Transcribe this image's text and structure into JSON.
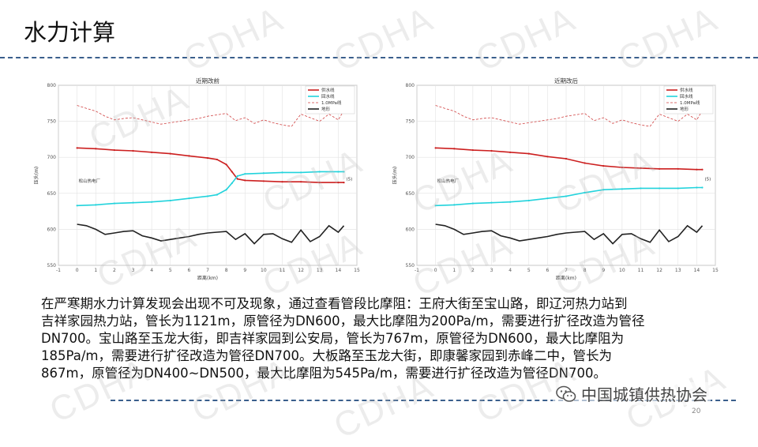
{
  "slide": {
    "title": "水力计算",
    "page_number": "20",
    "body": "在严寒期水力计算发现会出现不可及现象，通过查看管段比摩阻：王府大街至宝山路，即辽河热力站到\n吉祥家园热力站，管长为1121m，原管径为DN600，最大比摩阻为200Pa/m，需要进行扩径改造为管径\nDN700。宝山路至玉龙大街，即吉祥家园到公安局，管长为767m，原管径为DN600，最大比摩阻为\n185Pa/m，需要进行扩径改造为管径DN700。大板路至玉龙大街，即康馨家园到赤峰二中，管长为\n867m，原管径为DN400~DN500，最大比摩阻为545Pa/m，需要进行扩径改造为管径DN700。"
  },
  "watermark": {
    "text": "CDHA"
  },
  "logo": {
    "org_name": "中国城镇供热协会",
    "icon": "wechat-icon"
  },
  "colors": {
    "supply": "#cc1f1f",
    "return": "#22d3dc",
    "limit": "#d04040",
    "ground": "#222222",
    "accent_line": "#3a5f8c"
  },
  "chart_data": [
    {
      "type": "line",
      "title": "近期改前",
      "xlabel": "距离(km)",
      "ylabel": "压头(m)",
      "start_label": "松山热电厂",
      "end_label": "(5)",
      "x_ticks": [
        -1,
        0,
        1,
        2,
        3,
        4,
        5,
        6,
        7,
        8,
        9,
        10,
        11,
        12,
        13,
        14,
        15
      ],
      "y_ticks": [
        550,
        600,
        650,
        700,
        750,
        800
      ],
      "xlim": [
        -1,
        15
      ],
      "ylim": [
        550,
        800
      ],
      "grid": true,
      "legend_position": "top-right",
      "legend": [
        "供水线",
        "回水线",
        "1.0MPa线",
        "地形"
      ],
      "series": [
        {
          "name": "供水线",
          "style": "solid",
          "x": [
            0,
            1,
            2,
            3,
            4,
            5,
            6,
            7,
            7.5,
            8,
            8.3,
            8.6,
            9,
            10,
            11,
            12,
            13,
            14,
            14.3
          ],
          "y": [
            713,
            712,
            710,
            709,
            707,
            705,
            702,
            699,
            697,
            690,
            680,
            670,
            668,
            667,
            666,
            666,
            665,
            665,
            665
          ]
        },
        {
          "name": "回水线",
          "style": "solid",
          "x": [
            0,
            1,
            2,
            3,
            4,
            5,
            6,
            7,
            7.5,
            8,
            8.3,
            8.6,
            9,
            10,
            11,
            12,
            13,
            14,
            14.3
          ],
          "y": [
            633,
            634,
            636,
            637,
            638,
            640,
            643,
            646,
            648,
            655,
            664,
            674,
            677,
            678,
            679,
            679,
            680,
            680,
            680
          ]
        },
        {
          "name": "1.0MPa线",
          "style": "dashed",
          "x": [
            0,
            0.5,
            1,
            1.5,
            2,
            2.5,
            3,
            3.5,
            4,
            4.5,
            5,
            5.5,
            6,
            6.5,
            7,
            7.5,
            8,
            8.5,
            9,
            9.5,
            10,
            10.5,
            11,
            11.5,
            12,
            12.5,
            13,
            13.5,
            14,
            14.3
          ],
          "y": [
            772,
            768,
            764,
            757,
            752,
            754,
            755,
            752,
            749,
            746,
            748,
            750,
            752,
            754,
            757,
            759,
            761,
            751,
            755,
            747,
            752,
            748,
            745,
            743,
            760,
            755,
            750,
            760,
            752,
            765
          ]
        },
        {
          "name": "地形",
          "style": "solid",
          "x": [
            0,
            0.5,
            1,
            1.5,
            2,
            2.5,
            3,
            3.5,
            4,
            4.5,
            5,
            5.5,
            6,
            6.5,
            7,
            7.5,
            8,
            8.5,
            9,
            9.5,
            10,
            10.5,
            11,
            11.5,
            12,
            12.5,
            13,
            13.5,
            14,
            14.3
          ],
          "y": [
            607,
            605,
            600,
            593,
            595,
            597,
            598,
            591,
            588,
            584,
            586,
            588,
            590,
            593,
            595,
            596,
            597,
            586,
            594,
            580,
            593,
            594,
            587,
            582,
            599,
            583,
            590,
            605,
            596,
            605
          ]
        }
      ]
    },
    {
      "type": "line",
      "title": "近期改后",
      "xlabel": "距离(km)",
      "ylabel": "压头(m)",
      "start_label": "松山热电厂",
      "end_label": "(5)",
      "x_ticks": [
        -1,
        0,
        1,
        2,
        3,
        4,
        5,
        6,
        7,
        8,
        9,
        10,
        11,
        12,
        13,
        14,
        15
      ],
      "y_ticks": [
        550,
        600,
        650,
        700,
        750,
        800
      ],
      "xlim": [
        -1,
        15
      ],
      "ylim": [
        550,
        800
      ],
      "grid": true,
      "legend_position": "top-right",
      "legend": [
        "供水线",
        "回水线",
        "1.0MPa线",
        "地形"
      ],
      "series": [
        {
          "name": "供水线",
          "style": "solid",
          "x": [
            0,
            1,
            2,
            3,
            4,
            5,
            6,
            7,
            8,
            9,
            10,
            11,
            12,
            13,
            14,
            14.3
          ],
          "y": [
            713,
            712,
            710,
            709,
            707,
            705,
            701,
            698,
            692,
            688,
            686,
            685,
            684,
            684,
            683,
            683
          ]
        },
        {
          "name": "回水线",
          "style": "solid",
          "x": [
            0,
            1,
            2,
            3,
            4,
            5,
            6,
            7,
            8,
            9,
            10,
            11,
            12,
            13,
            14,
            14.3
          ],
          "y": [
            633,
            634,
            636,
            637,
            638,
            640,
            643,
            646,
            651,
            655,
            656,
            657,
            657,
            657,
            658,
            658
          ]
        },
        {
          "name": "1.0MPa线",
          "style": "dashed",
          "x": [
            0,
            0.5,
            1,
            1.5,
            2,
            2.5,
            3,
            3.5,
            4,
            4.5,
            5,
            5.5,
            6,
            6.5,
            7,
            7.5,
            8,
            8.5,
            9,
            9.5,
            10,
            10.5,
            11,
            11.5,
            12,
            12.5,
            13,
            13.5,
            14,
            14.3
          ],
          "y": [
            772,
            768,
            764,
            757,
            752,
            754,
            755,
            752,
            749,
            746,
            748,
            750,
            752,
            754,
            757,
            759,
            761,
            751,
            755,
            747,
            752,
            748,
            745,
            743,
            760,
            755,
            750,
            760,
            752,
            765
          ]
        },
        {
          "name": "地形",
          "style": "solid",
          "x": [
            0,
            0.5,
            1,
            1.5,
            2,
            2.5,
            3,
            3.5,
            4,
            4.5,
            5,
            5.5,
            6,
            6.5,
            7,
            7.5,
            8,
            8.5,
            9,
            9.5,
            10,
            10.5,
            11,
            11.5,
            12,
            12.5,
            13,
            13.5,
            14,
            14.3
          ],
          "y": [
            607,
            605,
            600,
            593,
            595,
            597,
            598,
            591,
            588,
            584,
            586,
            588,
            590,
            593,
            595,
            596,
            597,
            586,
            594,
            580,
            593,
            594,
            587,
            582,
            599,
            583,
            590,
            605,
            596,
            605
          ]
        }
      ]
    }
  ]
}
